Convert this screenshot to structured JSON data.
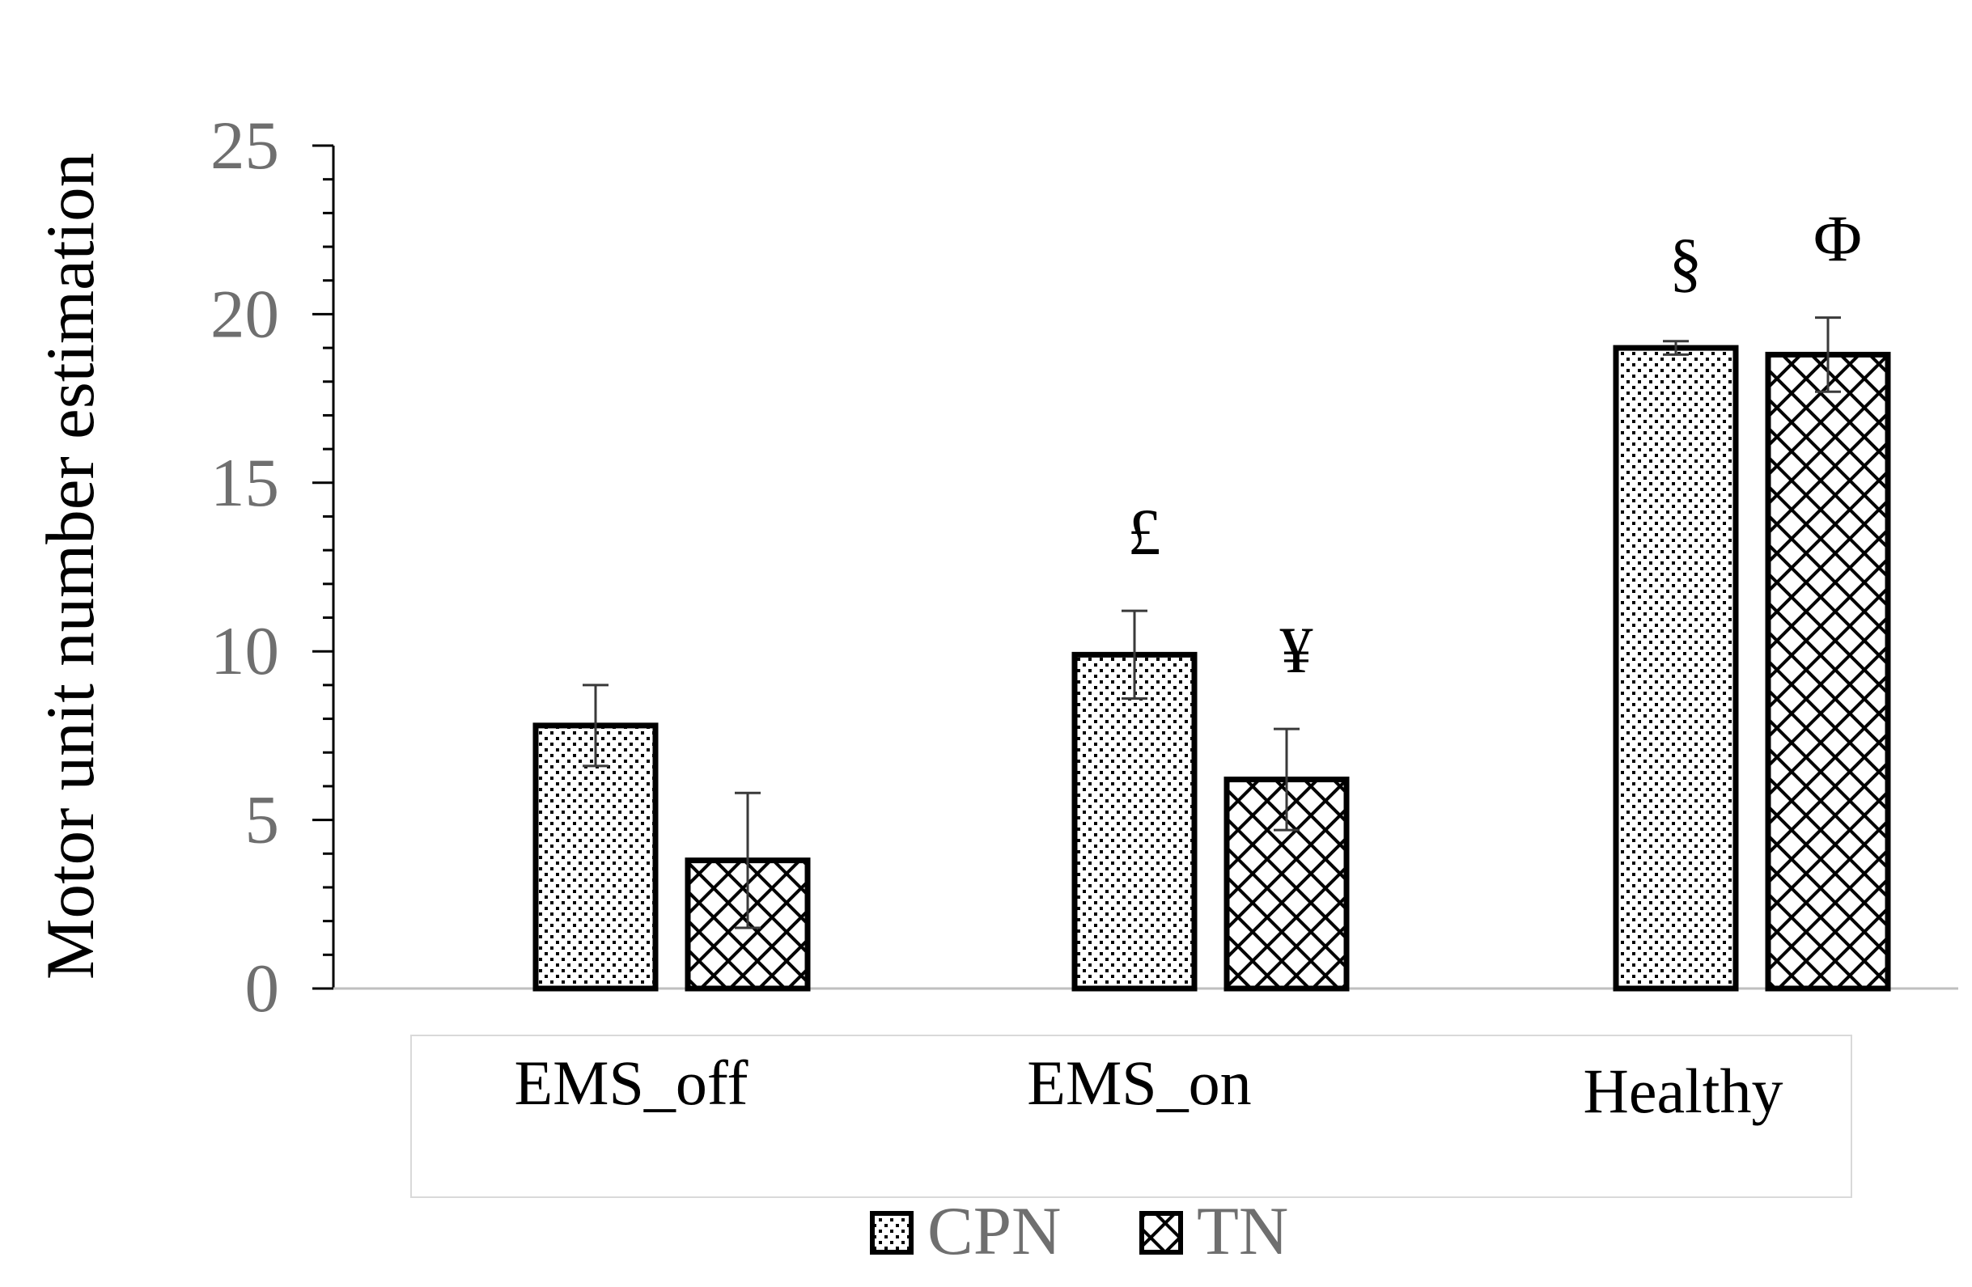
{
  "chart_data": {
    "type": "bar",
    "title": "",
    "xlabel": "",
    "ylabel": "Motor unit number estimation",
    "ylim": [
      0,
      25
    ],
    "yticks": [
      "0",
      "5",
      "10",
      "15",
      "20",
      "25"
    ],
    "categories": [
      "EMS_off",
      "EMS_on",
      "Healthy"
    ],
    "series": [
      {
        "name": "CPN",
        "pattern": "dots",
        "values": [
          7.8,
          9.9,
          19.0
        ],
        "errors": [
          1.2,
          1.3,
          0.2
        ],
        "annotations": [
          "",
          "£",
          "§"
        ]
      },
      {
        "name": "TN",
        "pattern": "crosshatch",
        "values": [
          3.8,
          6.2,
          18.8
        ],
        "errors": [
          2.0,
          1.5,
          1.1
        ],
        "annotations": [
          "",
          "¥",
          "Φ"
        ]
      }
    ],
    "grid": false,
    "legend_position": "bottom",
    "colors": {
      "bar_fill": "#ffffff",
      "bar_edge": "#000000",
      "pattern": "#000000",
      "axis": "#000000",
      "tick_text": "#6f6f6f",
      "errorbar": "#3a3a3a"
    }
  }
}
